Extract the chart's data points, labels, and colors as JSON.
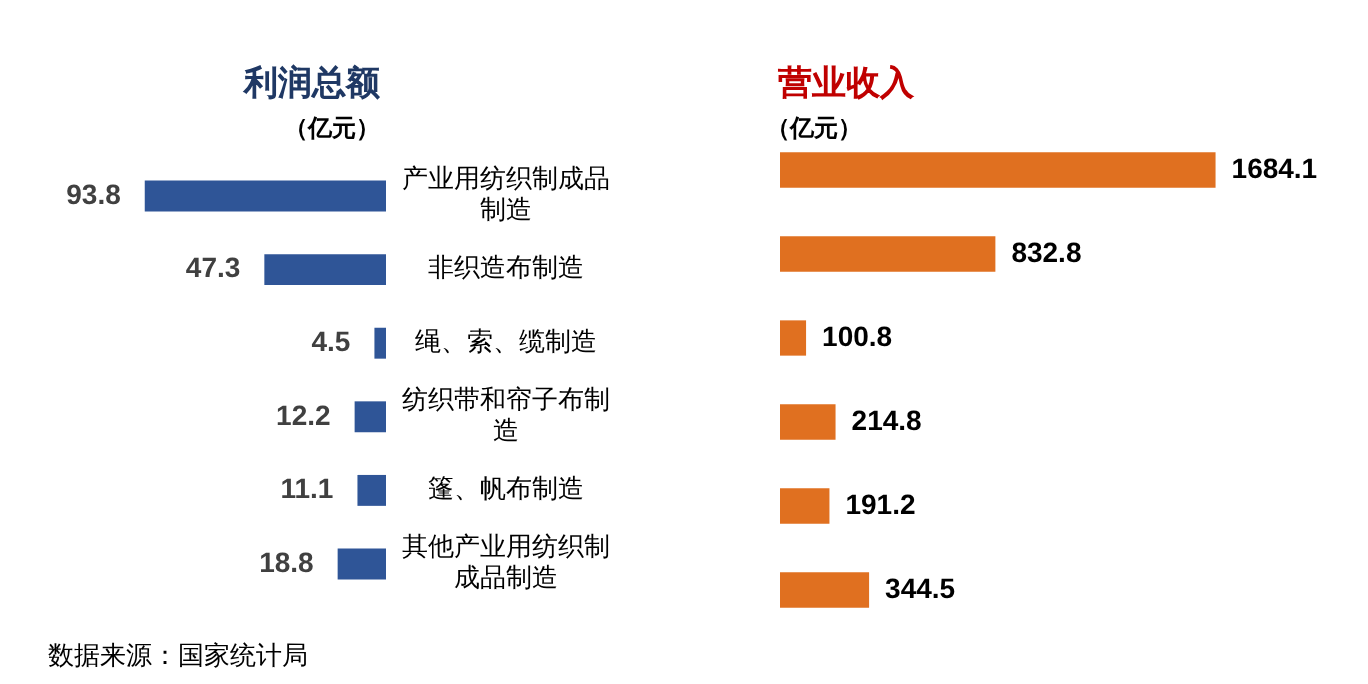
{
  "chart_data": [
    {
      "type": "bar",
      "orientation": "horizontal",
      "title": "利润总额",
      "subtitle": "（亿元）",
      "categories": [
        "产业用纺织制成品制造",
        "非织造布制造",
        "绳、索、缆制造",
        "纺织带和帘子布制造",
        "篷、帆布制造",
        "其他产业用纺织制成品制造"
      ],
      "values": [
        93.8,
        47.3,
        4.5,
        12.2,
        11.1,
        18.8
      ],
      "color": "#2f5597",
      "data_labels": true,
      "tick_labels": "y",
      "annotations": [
        "数据来源：国家统计局"
      ]
    },
    {
      "type": "bar",
      "orientation": "horizontal",
      "title": "营业收入",
      "subtitle": "（亿元）",
      "categories": [
        "产业用纺织制成品制造",
        "非织造布制造",
        "绳、索、缆制造",
        "纺织带和帘子布制造",
        "篷、帆布制造",
        "其他产业用纺织制成品制造"
      ],
      "values": [
        1684.1,
        832.8,
        100.8,
        214.8,
        191.2,
        344.5
      ],
      "color": "#e07020",
      "data_labels": true,
      "tick_labels": false
    }
  ]
}
